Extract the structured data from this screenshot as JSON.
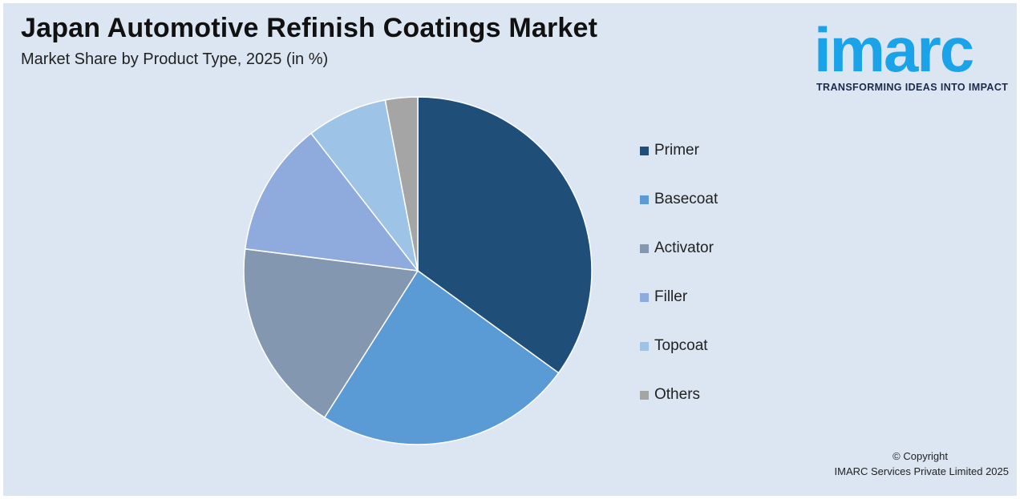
{
  "header": {
    "title": "Japan Automotive Refinish Coatings Market",
    "subtitle": "Market Share by Product Type, 2025 (in %)"
  },
  "logo": {
    "word": "imarc",
    "tagline": "TRANSFORMING IDEAS INTO IMPACT",
    "color": "#1aa3e8"
  },
  "footer": {
    "copyright": "© Copyright",
    "company": "IMARC Services Private Limited 2025"
  },
  "chart_data": {
    "type": "pie",
    "title": "Japan Automotive Refinish Coatings Market",
    "subtitle": "Market Share by Product Type, 2025 (in %)",
    "legend_position": "right",
    "slices": [
      {
        "label": "Primer",
        "value": 35,
        "color": "#1f4e79"
      },
      {
        "label": "Basecoat",
        "value": 24,
        "color": "#5b9bd5"
      },
      {
        "label": "Activator",
        "value": 18,
        "color": "#8497b0"
      },
      {
        "label": "Filler",
        "value": 12.5,
        "color": "#8faadc"
      },
      {
        "label": "Topcoat",
        "value": 7.5,
        "color": "#9dc3e6"
      },
      {
        "label": "Others",
        "value": 3,
        "color": "#a5a5a5"
      }
    ]
  }
}
